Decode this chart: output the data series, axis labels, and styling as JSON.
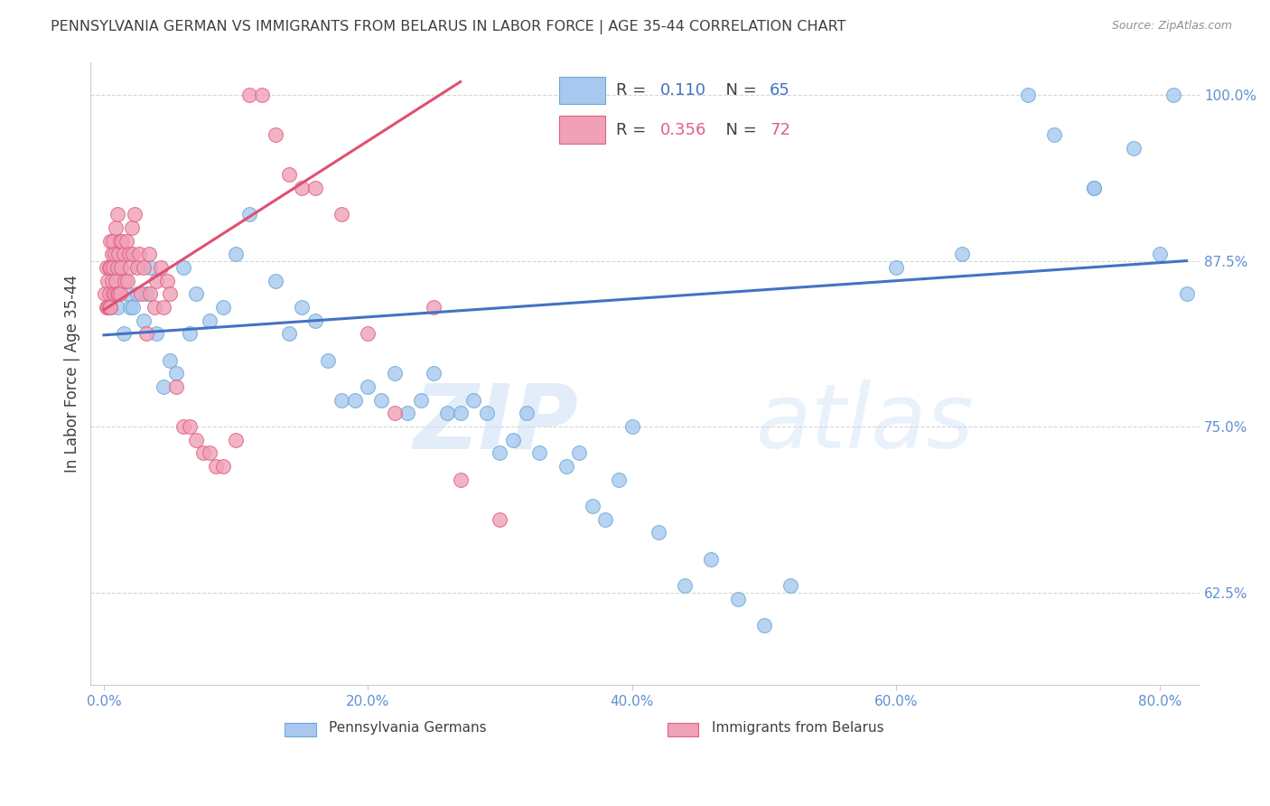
{
  "title": "PENNSYLVANIA GERMAN VS IMMIGRANTS FROM BELARUS IN LABOR FORCE | AGE 35-44 CORRELATION CHART",
  "source": "Source: ZipAtlas.com",
  "xlabel_ticks": [
    "0.0%",
    "20.0%",
    "40.0%",
    "60.0%",
    "80.0%"
  ],
  "xlabel_vals": [
    0.0,
    0.2,
    0.4,
    0.6,
    0.8
  ],
  "ylabel": "In Labor Force | Age 35-44",
  "ylabel_ticks": [
    0.625,
    0.75,
    0.875,
    1.0
  ],
  "ylabel_tick_labels": [
    "62.5%",
    "75.0%",
    "87.5%",
    "100.0%"
  ],
  "ylim": [
    0.555,
    1.025
  ],
  "xlim": [
    -0.01,
    0.83
  ],
  "blue_R": 0.11,
  "blue_N": 65,
  "pink_R": 0.356,
  "pink_N": 72,
  "blue_scatter_color": "#a8c8f0",
  "blue_edge_color": "#6aaad4",
  "pink_scatter_color": "#f0a0b8",
  "pink_edge_color": "#e06080",
  "blue_line_color": "#4472c4",
  "pink_line_color": "#e05070",
  "background_color": "#ffffff",
  "grid_color": "#cccccc",
  "title_color": "#404040",
  "axis_color": "#6090d0",
  "blue_x": [
    0.005,
    0.01,
    0.013,
    0.015,
    0.018,
    0.02,
    0.022,
    0.025,
    0.03,
    0.032,
    0.035,
    0.04,
    0.045,
    0.05,
    0.055,
    0.06,
    0.065,
    0.07,
    0.08,
    0.09,
    0.1,
    0.11,
    0.13,
    0.14,
    0.15,
    0.16,
    0.17,
    0.18,
    0.19,
    0.2,
    0.21,
    0.22,
    0.23,
    0.24,
    0.25,
    0.26,
    0.27,
    0.28,
    0.29,
    0.3,
    0.31,
    0.32,
    0.33,
    0.35,
    0.36,
    0.37,
    0.38,
    0.39,
    0.4,
    0.42,
    0.44,
    0.46,
    0.48,
    0.5,
    0.52,
    0.6,
    0.65,
    0.7,
    0.72,
    0.75,
    0.78,
    0.8,
    0.81,
    0.75,
    0.82
  ],
  "blue_y": [
    0.84,
    0.84,
    0.87,
    0.82,
    0.85,
    0.84,
    0.84,
    0.85,
    0.83,
    0.85,
    0.87,
    0.82,
    0.78,
    0.8,
    0.79,
    0.87,
    0.82,
    0.85,
    0.83,
    0.84,
    0.88,
    0.91,
    0.86,
    0.82,
    0.84,
    0.83,
    0.8,
    0.77,
    0.77,
    0.78,
    0.77,
    0.79,
    0.76,
    0.77,
    0.79,
    0.76,
    0.76,
    0.77,
    0.76,
    0.73,
    0.74,
    0.76,
    0.73,
    0.72,
    0.73,
    0.69,
    0.68,
    0.71,
    0.75,
    0.67,
    0.63,
    0.65,
    0.62,
    0.6,
    0.63,
    0.87,
    0.88,
    1.0,
    0.97,
    0.93,
    0.96,
    0.88,
    1.0,
    0.93,
    0.85
  ],
  "pink_x": [
    0.001,
    0.002,
    0.002,
    0.003,
    0.003,
    0.004,
    0.004,
    0.004,
    0.005,
    0.005,
    0.005,
    0.006,
    0.006,
    0.007,
    0.007,
    0.007,
    0.008,
    0.008,
    0.009,
    0.009,
    0.01,
    0.01,
    0.01,
    0.011,
    0.011,
    0.012,
    0.012,
    0.013,
    0.014,
    0.015,
    0.016,
    0.017,
    0.018,
    0.019,
    0.02,
    0.021,
    0.022,
    0.023,
    0.025,
    0.027,
    0.028,
    0.03,
    0.032,
    0.034,
    0.035,
    0.038,
    0.04,
    0.043,
    0.045,
    0.048,
    0.05,
    0.055,
    0.06,
    0.065,
    0.07,
    0.075,
    0.08,
    0.085,
    0.09,
    0.1,
    0.11,
    0.12,
    0.13,
    0.14,
    0.15,
    0.16,
    0.18,
    0.2,
    0.22,
    0.25,
    0.27,
    0.3
  ],
  "pink_y": [
    0.85,
    0.84,
    0.87,
    0.84,
    0.86,
    0.84,
    0.85,
    0.87,
    0.84,
    0.87,
    0.89,
    0.86,
    0.88,
    0.85,
    0.87,
    0.89,
    0.85,
    0.88,
    0.86,
    0.9,
    0.85,
    0.87,
    0.91,
    0.85,
    0.88,
    0.85,
    0.89,
    0.87,
    0.89,
    0.88,
    0.86,
    0.89,
    0.86,
    0.88,
    0.87,
    0.9,
    0.88,
    0.91,
    0.87,
    0.88,
    0.85,
    0.87,
    0.82,
    0.88,
    0.85,
    0.84,
    0.86,
    0.87,
    0.84,
    0.86,
    0.85,
    0.78,
    0.75,
    0.75,
    0.74,
    0.73,
    0.73,
    0.72,
    0.72,
    0.74,
    1.0,
    1.0,
    0.97,
    0.94,
    0.93,
    0.93,
    0.91,
    0.82,
    0.76,
    0.84,
    0.71,
    0.68
  ],
  "blue_line_x": [
    0.0,
    0.82
  ],
  "blue_line_y": [
    0.819,
    0.875
  ],
  "pink_line_x": [
    0.0,
    0.27
  ],
  "pink_line_y": [
    0.838,
    1.01
  ]
}
